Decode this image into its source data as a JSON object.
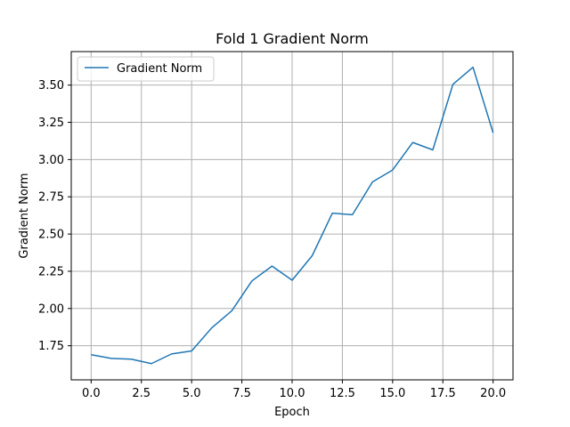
{
  "chart_data": {
    "type": "line",
    "title": "Fold 1 Gradient Norm",
    "xlabel": "Epoch",
    "ylabel": "Gradient Norm",
    "xlim": [
      -0.99,
      20.99
    ],
    "ylim": [
      1.521,
      3.725
    ],
    "xticks": [
      0.0,
      2.5,
      5.0,
      7.5,
      10.0,
      12.5,
      15.0,
      17.5,
      20.0
    ],
    "xtick_labels": [
      "0.0",
      "2.5",
      "5.0",
      "7.5",
      "10.0",
      "12.5",
      "15.0",
      "17.5",
      "20.0"
    ],
    "yticks": [
      1.75,
      2.0,
      2.25,
      2.5,
      2.75,
      3.0,
      3.25,
      3.5
    ],
    "ytick_labels": [
      "1.75",
      "2.00",
      "2.25",
      "2.50",
      "2.75",
      "3.00",
      "3.25",
      "3.50"
    ],
    "grid": true,
    "legend_position": "top-left",
    "series": [
      {
        "name": "Gradient Norm",
        "color": "#1f77b4",
        "x": [
          0,
          1,
          2,
          3,
          4,
          5,
          6,
          7,
          8,
          9,
          10,
          11,
          12,
          13,
          14,
          15,
          16,
          17,
          18,
          19,
          20
        ],
        "y": [
          1.69,
          1.665,
          1.66,
          1.63,
          1.695,
          1.715,
          1.87,
          1.985,
          2.185,
          2.285,
          2.19,
          2.355,
          2.64,
          2.63,
          2.85,
          2.93,
          3.115,
          3.065,
          3.505,
          3.62,
          3.18
        ]
      }
    ]
  }
}
